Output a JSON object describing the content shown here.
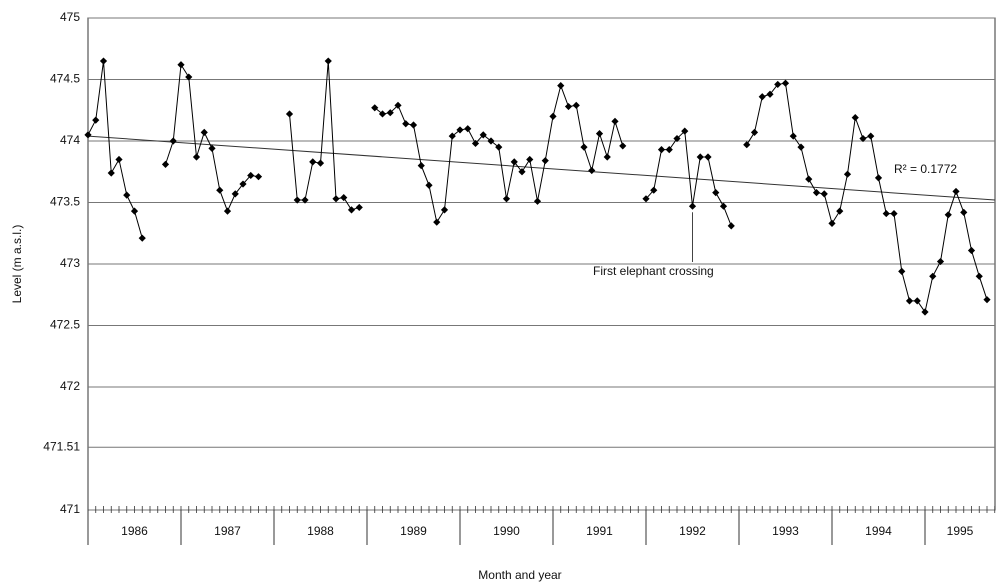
{
  "chart_data": {
    "type": "line",
    "y_label": "Level (m a.s.l.)",
    "x_label": "Month and year",
    "year_labels": [
      "1986",
      "1987",
      "1988",
      "1989",
      "1990",
      "1991",
      "1992",
      "1993",
      "1994",
      "1995"
    ],
    "values": [
      474.05,
      474.17,
      474.65,
      473.74,
      473.85,
      473.56,
      473.43,
      473.21,
      null,
      null,
      473.81,
      474.0,
      474.62,
      474.52,
      473.87,
      474.07,
      473.94,
      473.6,
      473.43,
      473.57,
      473.65,
      473.72,
      473.71,
      null,
      null,
      null,
      474.22,
      473.52,
      473.52,
      473.83,
      473.82,
      474.65,
      473.53,
      473.54,
      473.44,
      473.46,
      null,
      474.27,
      474.22,
      474.23,
      474.29,
      474.14,
      474.13,
      473.8,
      473.64,
      473.34,
      473.44,
      474.04,
      474.09,
      474.1,
      473.98,
      474.05,
      474.0,
      473.95,
      473.53,
      473.83,
      473.75,
      473.85,
      473.51,
      473.84,
      474.2,
      474.45,
      474.28,
      474.29,
      473.95,
      473.76,
      474.06,
      473.87,
      474.16,
      473.96,
      null,
      null,
      473.53,
      473.6,
      473.93,
      473.93,
      474.02,
      474.08,
      473.47,
      473.87,
      473.87,
      473.58,
      473.47,
      473.31,
      null,
      473.97,
      474.07,
      474.36,
      474.38,
      474.46,
      474.47,
      474.04,
      473.95,
      473.69,
      473.58,
      473.57,
      473.33,
      473.43,
      473.73,
      474.19,
      474.02,
      474.04,
      473.7,
      473.41,
      473.41,
      472.94,
      472.7,
      472.7,
      472.61,
      472.9,
      473.02,
      473.4,
      473.59,
      473.42,
      473.11,
      472.9,
      472.71
    ],
    "color": "#000000",
    "trendline": [
      474.04,
      473.52
    ],
    "r_squared_label": "R² = 0.1772",
    "annotation": "First elephant crossing",
    "annotation_index": 78,
    "ylim": [
      471,
      475
    ],
    "yticks": [
      471,
      471.51,
      472,
      472.5,
      473,
      473.5,
      474,
      474.5,
      475
    ],
    "grid": true
  }
}
